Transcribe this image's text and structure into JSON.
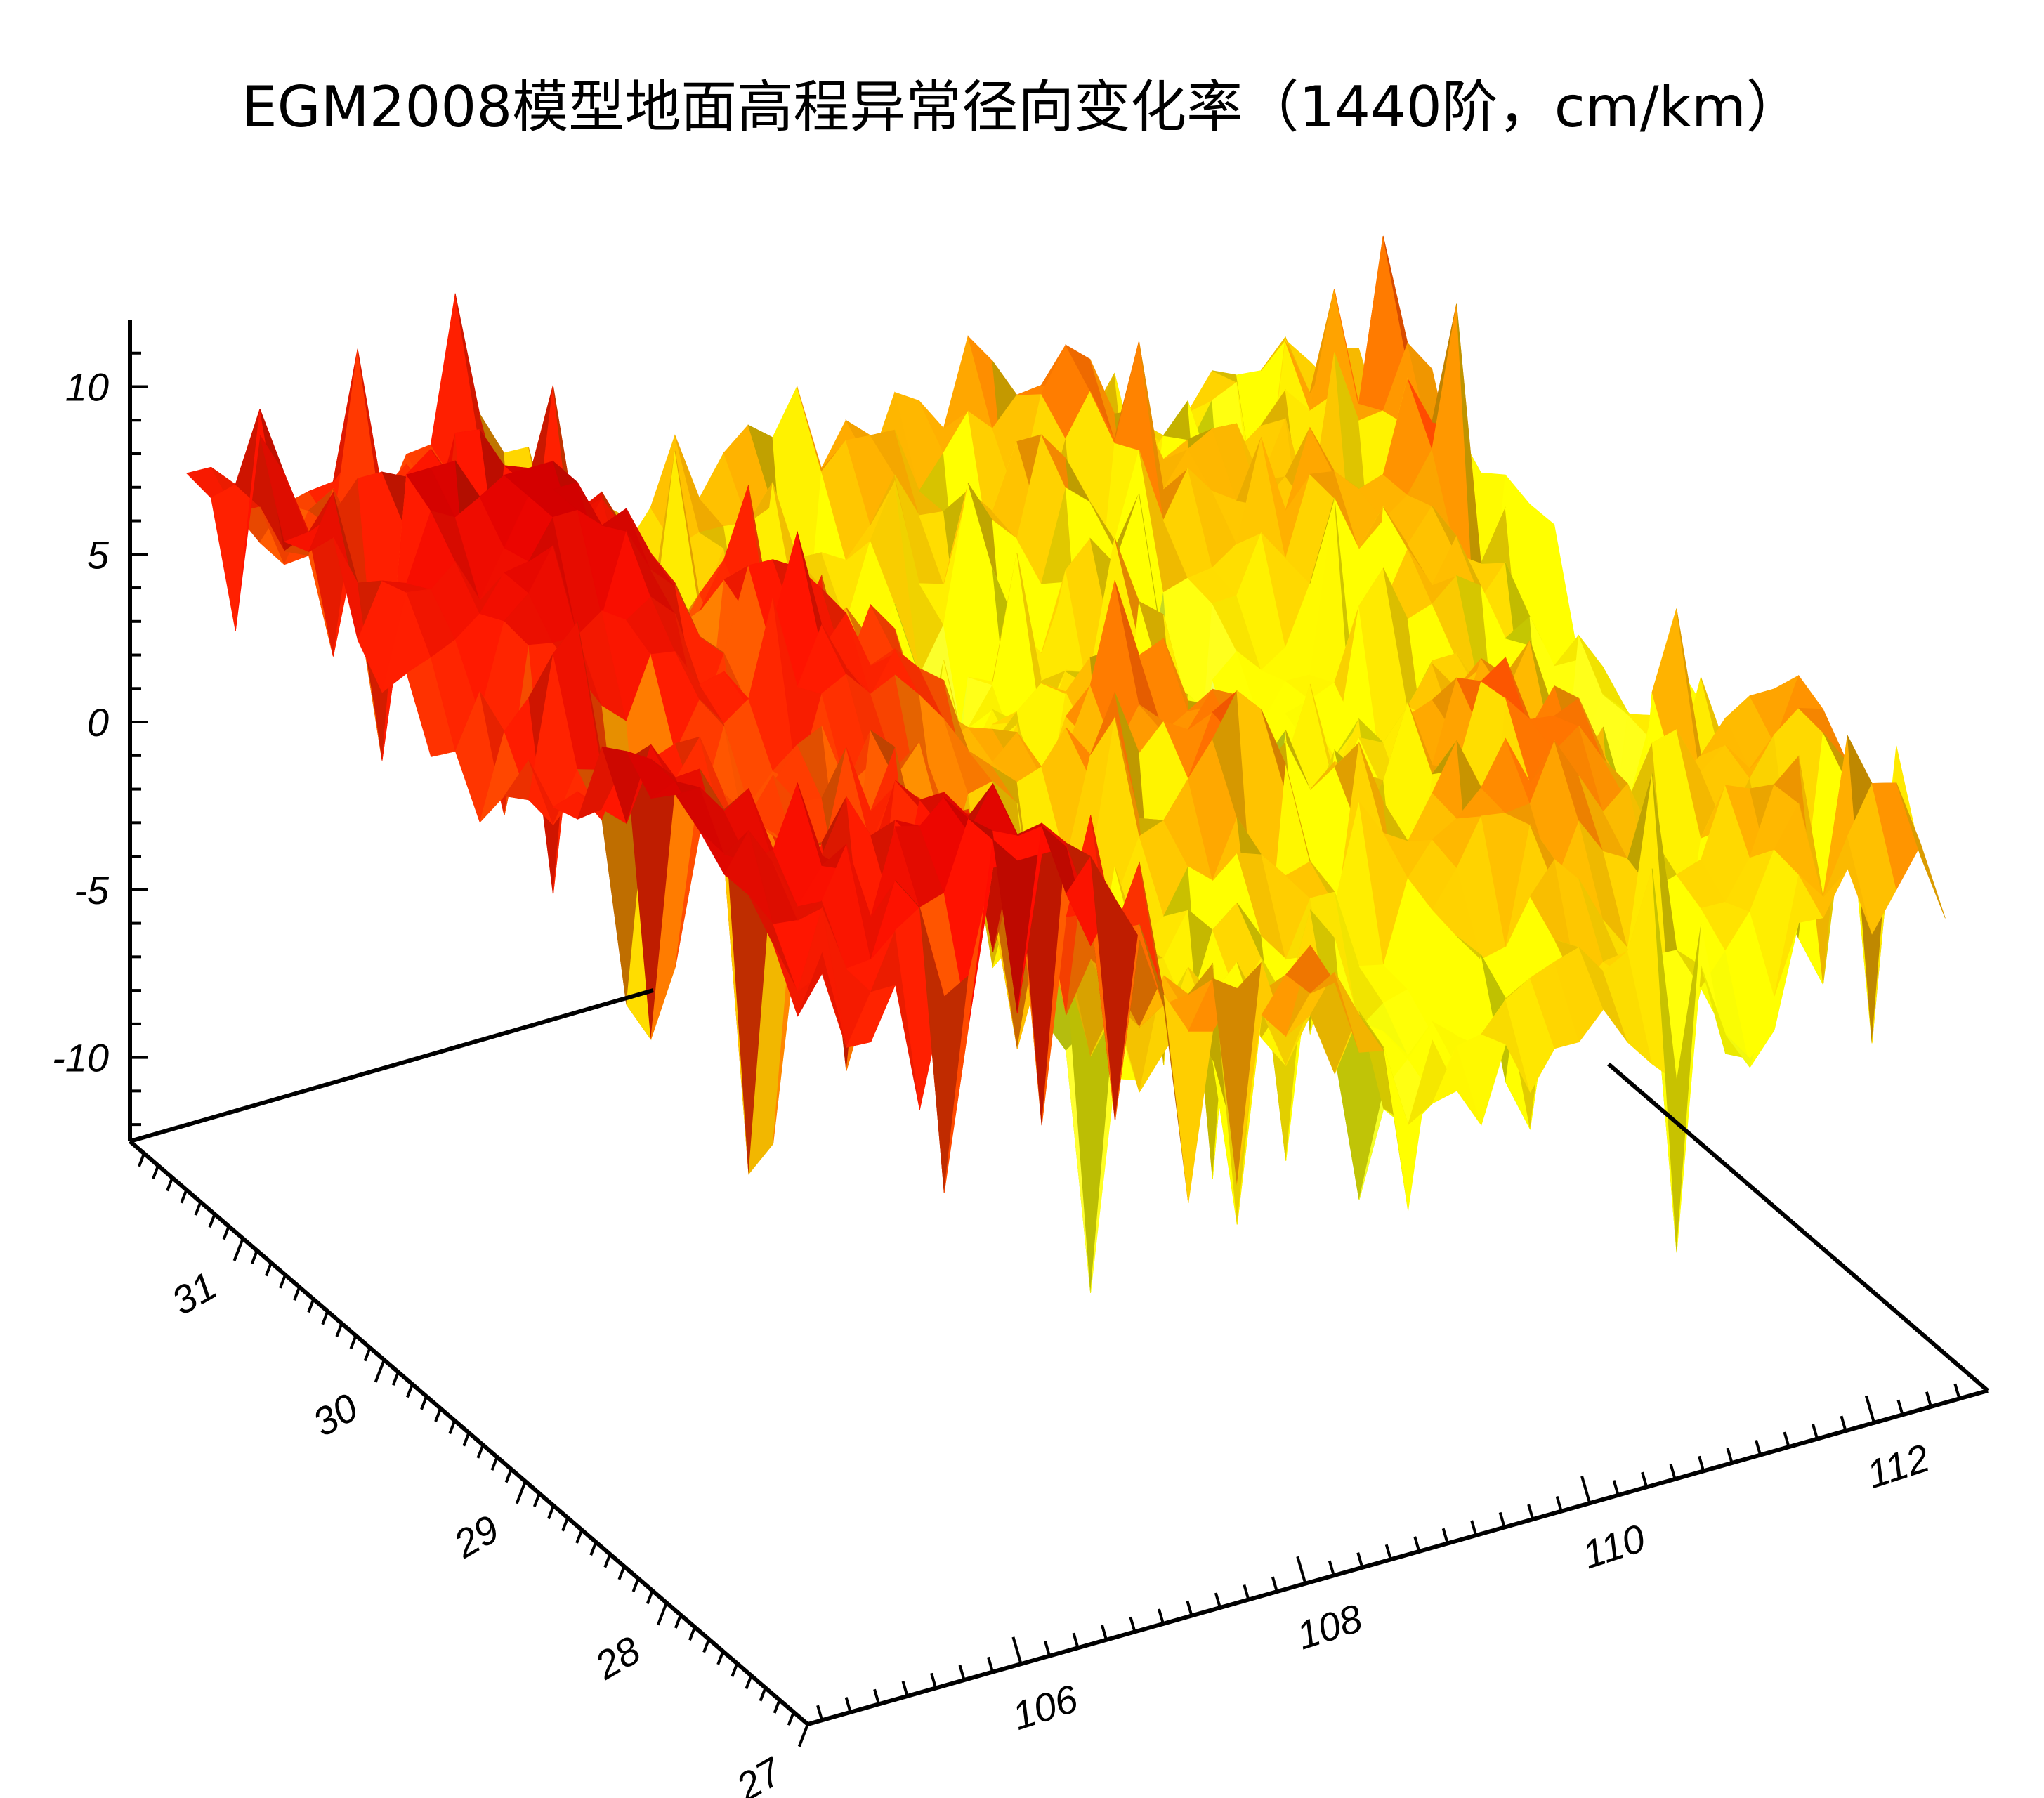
{
  "chart_data": {
    "type": "surface",
    "title": "EGM2008模型地面高程异常径向变化率（1440阶，cm/km）",
    "x_axis": {
      "ticks": [
        "106",
        "108",
        "110",
        "112"
      ],
      "tick_values": [
        106,
        108,
        110,
        112
      ],
      "range": [
        104.5,
        112.8
      ]
    },
    "y_axis": {
      "ticks": [
        "27",
        "28",
        "29",
        "30",
        "31"
      ],
      "tick_values": [
        27,
        28,
        29,
        30,
        31
      ],
      "range": [
        27,
        31.8
      ]
    },
    "z_axis": {
      "ticks": [
        "10",
        "5",
        "0",
        "-5",
        "-10"
      ],
      "tick_values": [
        10,
        5,
        0,
        -5,
        -10
      ],
      "range": [
        -12.5,
        12
      ]
    },
    "colormap": [
      "#00b4e6",
      "#5ff0c8",
      "#c8f050",
      "#ffff00",
      "#ffb400",
      "#ff2000",
      "#d40000"
    ],
    "surface_summary": {
      "west_region_longitude_below_107": "high values, about 5 to 11",
      "east_region_longitude_above_108": "moderate values, about -4 to 8",
      "minimum": -12,
      "maximum": 11
    }
  }
}
